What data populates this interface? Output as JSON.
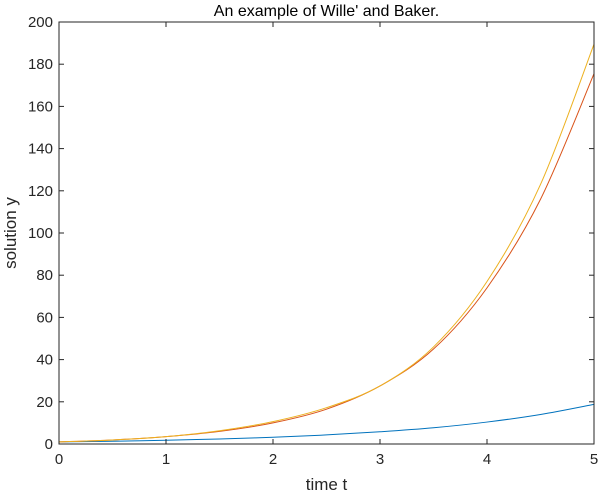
{
  "chart_data": {
    "type": "line",
    "title": "An example of Wille' and Baker.",
    "xlabel": "time t",
    "ylabel": "solution y",
    "xlim": [
      0,
      5
    ],
    "ylim": [
      0,
      200
    ],
    "xticks": [
      0,
      1,
      2,
      3,
      4,
      5
    ],
    "yticks": [
      0,
      20,
      40,
      60,
      80,
      100,
      120,
      140,
      160,
      180,
      200
    ],
    "xtick_labels": [
      "0",
      "1",
      "2",
      "3",
      "4",
      "5"
    ],
    "ytick_labels": [
      "0",
      "20",
      "40",
      "60",
      "80",
      "100",
      "120",
      "140",
      "160",
      "180",
      "200"
    ],
    "grid": false,
    "x": [
      0,
      0.5,
      1,
      1.5,
      2,
      2.5,
      3,
      3.5,
      4,
      4.5,
      5
    ],
    "series": [
      {
        "color": "#0072BD",
        "values": [
          1.0,
          1.3,
          1.8,
          2.4,
          3.2,
          4.3,
          5.8,
          7.7,
          10.4,
          14.0,
          18.8
        ]
      },
      {
        "color": "#D95319",
        "values": [
          1.0,
          1.9,
          3.5,
          6.0,
          10.0,
          16.5,
          27.5,
          45.0,
          74.0,
          116.0,
          175.5
        ]
      },
      {
        "color": "#EDB120",
        "values": [
          1.0,
          1.9,
          3.5,
          6.3,
          10.6,
          17.2,
          27.5,
          46.0,
          77.0,
          123.0,
          189.5
        ]
      }
    ]
  }
}
